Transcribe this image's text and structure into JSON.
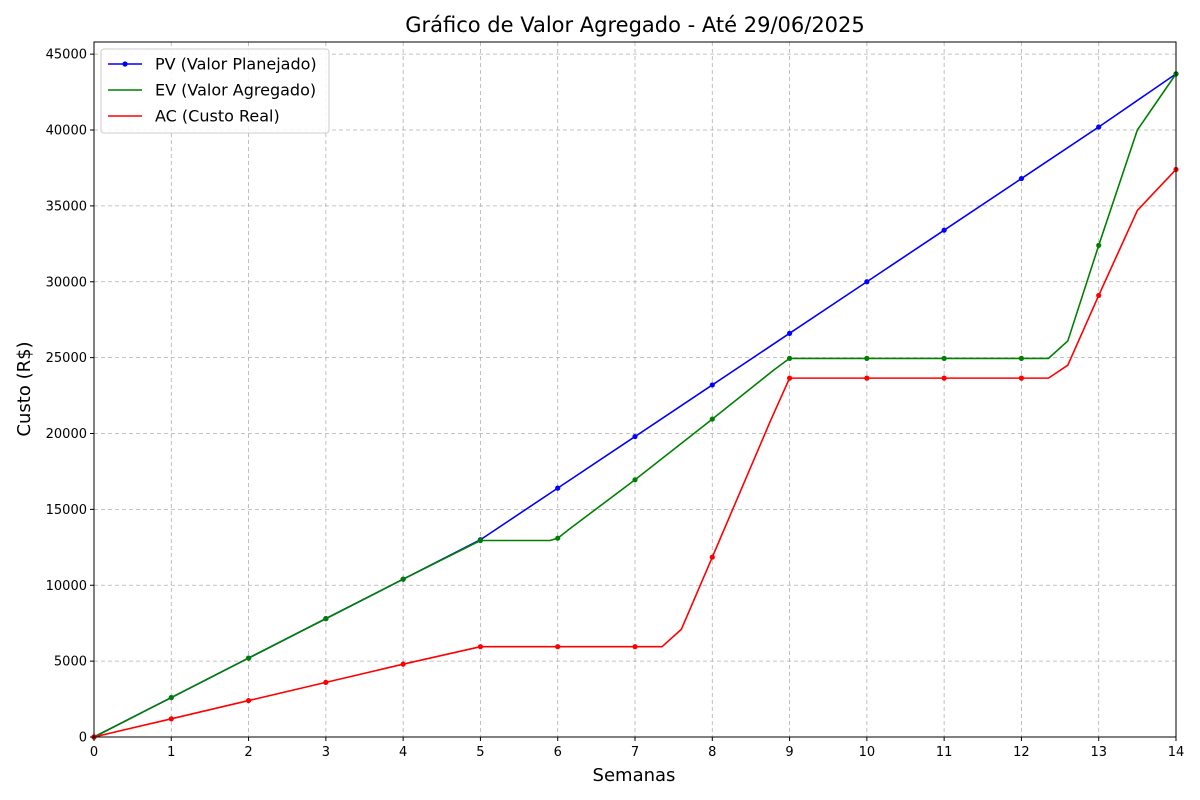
{
  "chart_data": {
    "type": "line",
    "title": "Gráfico de Valor Agregado - Até 29/06/2025",
    "xlabel": "Semanas",
    "ylabel": "Custo (R$)",
    "xlim": [
      0,
      14
    ],
    "ylim": [
      0,
      45800
    ],
    "xticks": [
      0,
      1,
      2,
      3,
      4,
      5,
      6,
      7,
      8,
      9,
      10,
      11,
      12,
      13,
      14
    ],
    "yticks": [
      0,
      5000,
      10000,
      15000,
      20000,
      25000,
      30000,
      35000,
      40000,
      45000
    ],
    "grid": true,
    "legend_position": "top-left",
    "series": [
      {
        "name": "PV (Valor Planejado)",
        "color": "#0000ff",
        "marker": "circle",
        "x": [
          0,
          1,
          2,
          3,
          4,
          5,
          6,
          7,
          8,
          9,
          10,
          11,
          12,
          13,
          14
        ],
        "y": [
          0,
          2600,
          5200,
          7800,
          10400,
          13000,
          16400,
          19800,
          23200,
          26600,
          30000,
          33400,
          36800,
          40200,
          43700
        ]
      },
      {
        "name": "EV (Valor Agregado)",
        "color": "#008000",
        "marker": "circle",
        "x": [
          0,
          1,
          2,
          3,
          4,
          5,
          5.9,
          6,
          6.15,
          7,
          8,
          8.8,
          9,
          10,
          11,
          12,
          12.35,
          12.6,
          13,
          13.5,
          14
        ],
        "y": [
          0,
          2600,
          5200,
          7800,
          10400,
          12950,
          12950,
          13100,
          13700,
          16950,
          20950,
          24200,
          24950,
          24950,
          24950,
          24950,
          24950,
          26100,
          32400,
          40000,
          43700
        ],
        "marked_x": [
          0,
          1,
          2,
          3,
          4,
          5,
          6,
          7,
          8,
          9,
          10,
          11,
          12,
          13,
          14
        ]
      },
      {
        "name": "AC (Custo Real)",
        "color": "#ff0000",
        "marker": "circle",
        "x": [
          0,
          1,
          2,
          3,
          4,
          5,
          6,
          7,
          7.35,
          7.6,
          8,
          8.75,
          9,
          10,
          11,
          12,
          12.35,
          12.6,
          13,
          13.5,
          14
        ],
        "y": [
          0,
          1200,
          2400,
          3600,
          4800,
          5950,
          5950,
          5950,
          5950,
          7100,
          11850,
          20800,
          23650,
          23650,
          23650,
          23650,
          23650,
          24500,
          29100,
          34700,
          37400
        ],
        "marked_x": [
          0,
          1,
          2,
          3,
          4,
          5,
          6,
          7,
          8,
          9,
          10,
          11,
          12,
          13,
          14
        ]
      }
    ]
  }
}
